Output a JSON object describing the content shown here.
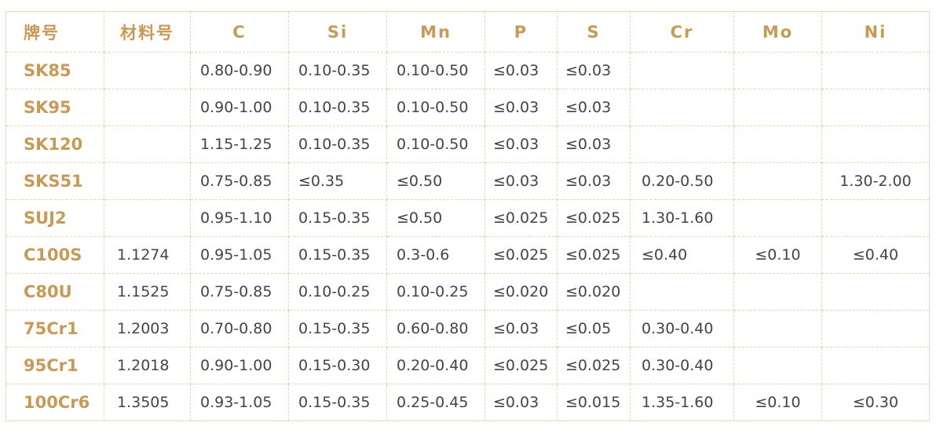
{
  "table": {
    "headers": [
      "牌号",
      "材料号",
      "C",
      "Si",
      "Mn",
      "P",
      "S",
      "Cr",
      "Mo",
      "Ni"
    ],
    "rows": [
      {
        "grade": "SK85",
        "material_no": "",
        "c": "0.80-0.90",
        "si": "0.10-0.35",
        "mn": "0.10-0.50",
        "p": "≤0.03",
        "s": "≤0.03",
        "cr": "",
        "mo": "",
        "ni": ""
      },
      {
        "grade": "SK95",
        "material_no": "",
        "c": "0.90-1.00",
        "si": "0.10-0.35",
        "mn": "0.10-0.50",
        "p": "≤0.03",
        "s": "≤0.03",
        "cr": "",
        "mo": "",
        "ni": ""
      },
      {
        "grade": "SK120",
        "material_no": "",
        "c": "1.15-1.25",
        "si": "0.10-0.35",
        "mn": "0.10-0.50",
        "p": "≤0.03",
        "s": "≤0.03",
        "cr": "",
        "mo": "",
        "ni": ""
      },
      {
        "grade": "SKS51",
        "material_no": "",
        "c": "0.75-0.85",
        "si": "≤0.35",
        "mn": "≤0.50",
        "p": "≤0.03",
        "s": "≤0.03",
        "cr": "0.20-0.50",
        "mo": "",
        "ni": "1.30-2.00"
      },
      {
        "grade": "SUJ2",
        "material_no": "",
        "c": "0.95-1.10",
        "si": "0.15-0.35",
        "mn": "≤0.50",
        "p": "≤0.025",
        "s": "≤0.025",
        "cr": "1.30-1.60",
        "mo": "",
        "ni": ""
      },
      {
        "grade": "C100S",
        "material_no": "1.1274",
        "c": "0.95-1.05",
        "si": "0.15-0.35",
        "mn": "0.3-0.6",
        "p": "≤0.025",
        "s": "≤0.025",
        "cr": "≤0.40",
        "mo": "≤0.10",
        "ni": "≤0.40"
      },
      {
        "grade": "C80U",
        "material_no": "1.1525",
        "c": "0.75-0.85",
        "si": "0.10-0.25",
        "mn": "0.10-0.25",
        "p": "≤0.020",
        "s": "≤0.020",
        "cr": "",
        "mo": "",
        "ni": ""
      },
      {
        "grade": "75Cr1",
        "material_no": "1.2003",
        "c": "0.70-0.80",
        "si": "0.15-0.35",
        "mn": "0.60-0.80",
        "p": "≤0.03",
        "s": "≤0.05",
        "cr": "0.30-0.40",
        "mo": "",
        "ni": ""
      },
      {
        "grade": "95Cr1",
        "material_no": "1.2018",
        "c": "0.90-1.00",
        "si": "0.15-0.30",
        "mn": "0.20-0.40",
        "p": "≤0.025",
        "s": "≤0.025",
        "cr": "0.30-0.40",
        "mo": "",
        "ni": ""
      },
      {
        "grade": "100Cr6",
        "material_no": "1.3505",
        "c": "0.93-1.05",
        "si": "0.15-0.35",
        "mn": "0.25-0.45",
        "p": "≤0.03",
        "s": "≤0.015",
        "cr": "1.35-1.60",
        "mo": "≤0.10",
        "ni": "≤0.30"
      }
    ]
  },
  "colors": {
    "accent": "#c99a55",
    "text": "#444444",
    "border": "#e8d3b4"
  }
}
